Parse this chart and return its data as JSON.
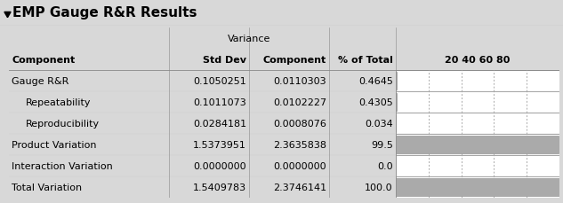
{
  "title": "EMP Gauge R&R Results",
  "rows": [
    {
      "label": "Gauge R&R",
      "indent": false,
      "std_dev": "0.1050251",
      "var_comp": "0.0110303",
      "pct": "0.4645",
      "pct_val": 0.4645
    },
    {
      "label": "Repeatability",
      "indent": true,
      "std_dev": "0.1011073",
      "var_comp": "0.0102227",
      "pct": "0.4305",
      "pct_val": 0.4305
    },
    {
      "label": "Reproducibility",
      "indent": true,
      "std_dev": "0.0284181",
      "var_comp": "0.0008076",
      "pct": "0.034",
      "pct_val": 0.034
    },
    {
      "label": "Product Variation",
      "indent": false,
      "std_dev": "1.5373951",
      "var_comp": "2.3635838",
      "pct": "99.5",
      "pct_val": 99.5
    },
    {
      "label": "Interaction Variation",
      "indent": false,
      "std_dev": "0.0000000",
      "var_comp": "0.0000000",
      "pct": "0.0",
      "pct_val": 0.0
    },
    {
      "label": "Total Variation",
      "indent": false,
      "std_dev": "1.5409783",
      "var_comp": "2.3746141",
      "pct": "100.0",
      "pct_val": 100.0
    }
  ],
  "bg_color": "#d8d8d8",
  "title_bg": "#d0d0d0",
  "table_bg": "#ffffff",
  "bar_color": "#aaaaaa",
  "bar_border": "#888888",
  "grid_color": "#aaaaaa",
  "outer_border": "#888888",
  "title_color": "#000000",
  "text_color": "#000000",
  "bar_max": 100,
  "bar_ticks": [
    20,
    40,
    60,
    80
  ],
  "figw": 6.33,
  "figh": 2.3,
  "dpi": 100
}
